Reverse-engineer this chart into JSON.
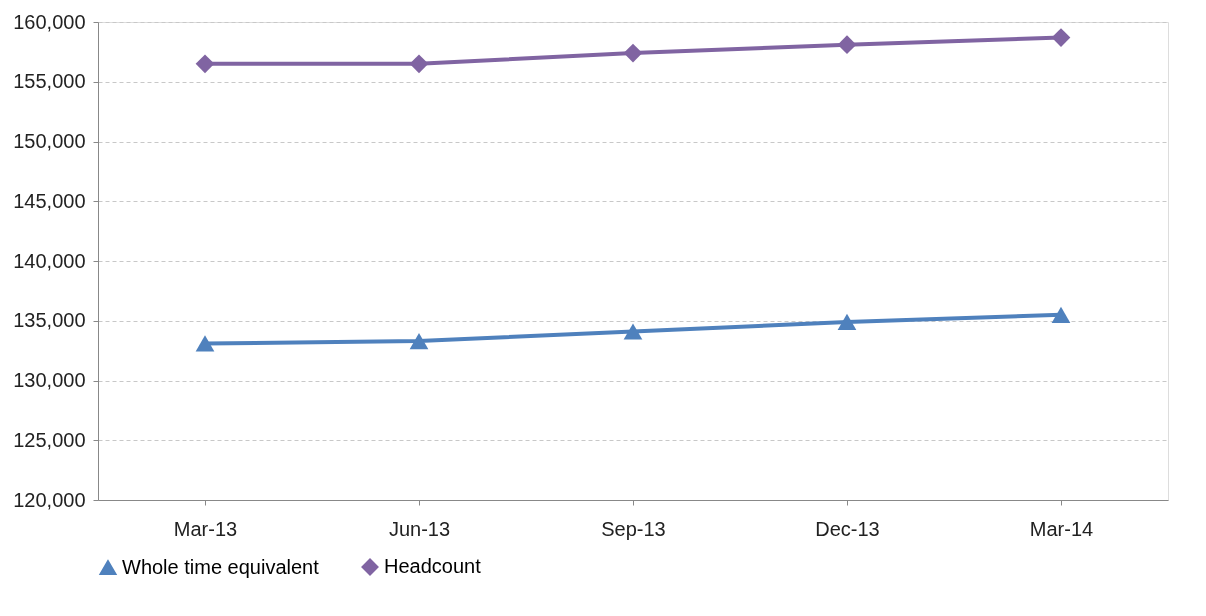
{
  "chart_data": {
    "type": "line",
    "categories": [
      "Mar-13",
      "Jun-13",
      "Sep-13",
      "Dec-13",
      "Mar-14"
    ],
    "series": [
      {
        "name": "Whole time equivalent",
        "color": "#4f81bd",
        "marker": "triangle",
        "values": [
          133100,
          133300,
          134100,
          134900,
          135500
        ]
      },
      {
        "name": "Headcount",
        "color": "#8064a2",
        "marker": "diamond",
        "values": [
          156500,
          156500,
          157400,
          158100,
          158700
        ]
      }
    ],
    "ylim": [
      120000,
      160000
    ],
    "yticks": [
      {
        "value": 120000,
        "label": "120,000"
      },
      {
        "value": 125000,
        "label": "125,000"
      },
      {
        "value": 130000,
        "label": "130,000"
      },
      {
        "value": 135000,
        "label": "135,000"
      },
      {
        "value": 140000,
        "label": "140,000"
      },
      {
        "value": 145000,
        "label": "145,000"
      },
      {
        "value": 150000,
        "label": "150,000"
      },
      {
        "value": 155000,
        "label": "155,000"
      },
      {
        "value": 160000,
        "label": "160,000"
      }
    ],
    "grid": "y",
    "legend": "bottom",
    "line_style": "solid"
  }
}
